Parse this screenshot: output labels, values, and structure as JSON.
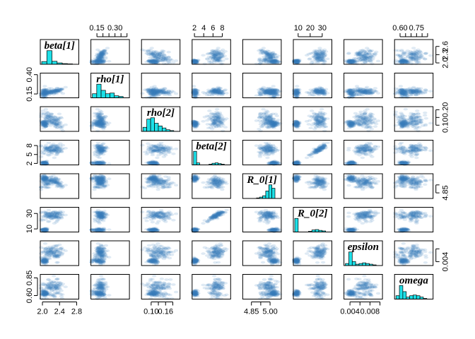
{
  "chart_data": {
    "type": "scatter",
    "subtype": "pairs-matrix-with-histograms",
    "variables": [
      "beta[1]",
      "rho[1]",
      "rho[2]",
      "beta[2]",
      "R_0[1]",
      "R_0[2]",
      "epsilon",
      "omega"
    ],
    "ranges": [
      [
        1.95,
        2.85
      ],
      [
        0.1,
        0.42
      ],
      [
        0.06,
        0.22
      ],
      [
        1.5,
        9.8
      ],
      [
        4.78,
        5.09
      ],
      [
        6,
        38
      ],
      [
        0.0028,
        0.0105
      ],
      [
        0.55,
        0.9
      ]
    ],
    "tick_labels": {
      "beta[1]": [
        "2.0",
        "2.4",
        "2.8"
      ],
      "rho[1]": [
        "0.15",
        "0.30"
      ],
      "rho[2]": [
        "0.10",
        "0.16"
      ],
      "beta[2]": [
        "2",
        "4",
        "6",
        "8"
      ],
      "R_0[1]": [
        "4.85",
        "5.00"
      ],
      "R_0[2]": [
        "10",
        "20",
        "30"
      ],
      "epsilon": [
        "0.004",
        "0.008"
      ],
      "omega": [
        "0.60",
        "0.75"
      ]
    },
    "axis_ticks": {
      "bottom": [
        {
          "var": 0,
          "values": [
            2.0,
            2.4,
            2.8
          ],
          "labels": [
            "2.0",
            "2.4",
            "2.8"
          ]
        },
        {
          "var": 2,
          "values": [
            0.1,
            0.13,
            0.16,
            0.19
          ],
          "labels": [
            "0.10",
            "",
            "0.16",
            ""
          ]
        },
        {
          "var": 4,
          "values": [
            4.85,
            4.925,
            5.0
          ],
          "labels": [
            "4.85",
            "",
            "5.00"
          ]
        },
        {
          "var": 6,
          "values": [
            0.004,
            0.006,
            0.008,
            0.01
          ],
          "labels": [
            "0.004",
            "",
            "0.008",
            ""
          ]
        }
      ],
      "top": [
        {
          "var": 1,
          "values": [
            0.15,
            0.2,
            0.25,
            0.3,
            0.35,
            0.4
          ],
          "labels": [
            "0.15",
            "",
            "",
            "0.30",
            "",
            ""
          ]
        },
        {
          "var": 3,
          "values": [
            2,
            4,
            6,
            8
          ],
          "labels": [
            "2",
            "4",
            "6",
            "8"
          ]
        },
        {
          "var": 5,
          "values": [
            10,
            20,
            30
          ],
          "labels": [
            "10",
            "20",
            "30"
          ]
        },
        {
          "var": 7,
          "values": [
            0.6,
            0.65,
            0.7,
            0.75,
            0.8,
            0.85
          ],
          "labels": [
            "0.60",
            "",
            "",
            "0.75",
            "",
            ""
          ]
        }
      ],
      "left": [
        {
          "var": 1,
          "values": [
            0.15,
            0.4
          ],
          "labels": [
            "0.15",
            "0.40"
          ]
        },
        {
          "var": 3,
          "values": [
            2,
            5,
            8
          ],
          "labels": [
            "2",
            "5",
            "8"
          ]
        },
        {
          "var": 5,
          "values": [
            10,
            30
          ],
          "labels": [
            "10",
            "30"
          ]
        },
        {
          "var": 7,
          "values": [
            0.6,
            0.85
          ],
          "labels": [
            "0.60",
            "0.85"
          ]
        }
      ],
      "right": [
        {
          "var": 0,
          "values": [
            2.0,
            2.3,
            2.6
          ],
          "labels": [
            "2.0",
            "2.3",
            "2.6"
          ]
        },
        {
          "var": 2,
          "values": [
            0.1,
            0.15,
            0.2
          ],
          "labels": [
            "0.10",
            "",
            "0.20"
          ]
        },
        {
          "var": 4,
          "values": [
            4.85,
            4.95
          ],
          "labels": [
            "4.85",
            ""
          ]
        },
        {
          "var": 6,
          "values": [
            0.004,
            0.008
          ],
          "labels": [
            "0.004",
            ""
          ]
        }
      ]
    },
    "histograms": [
      {
        "var": "beta[1]",
        "counts": [
          0.2,
          1.0,
          0.22,
          0.1,
          0.05,
          0.03
        ]
      },
      {
        "var": "rho[1]",
        "counts": [
          0.3,
          1.0,
          0.55,
          0.3,
          0.35,
          0.15,
          0.1
        ]
      },
      {
        "var": "rho[2]",
        "counts": [
          0.3,
          0.9,
          1.0,
          0.6,
          0.4,
          0.25,
          0.12,
          0.06
        ]
      },
      {
        "var": "beta[2]",
        "counts": [
          1.0,
          0.15,
          0,
          0,
          0,
          0.05,
          0.12,
          0.15,
          0.1,
          0.05
        ]
      },
      {
        "var": "R_0[1]",
        "counts": [
          0,
          0,
          0,
          0,
          0.04,
          0.1,
          0.2,
          0.55,
          1.0,
          0.75
        ]
      },
      {
        "var": "R_0[2]",
        "counts": [
          1.0,
          0,
          0,
          0,
          0.05,
          0.15,
          0.18,
          0.12,
          0.08
        ]
      },
      {
        "var": "epsilon",
        "counts": [
          0.15,
          1.0,
          0.3,
          0.1,
          0.15,
          0.2,
          0.15,
          0.1,
          0.05
        ]
      },
      {
        "var": "omega",
        "counts": [
          0.25,
          1.0,
          0.55,
          0.15,
          0.25,
          0.3,
          0.25,
          0.15,
          0.05
        ]
      }
    ],
    "point_color": "#3a7fb8",
    "histogram_fill": "#1de0e8",
    "grid": false
  }
}
